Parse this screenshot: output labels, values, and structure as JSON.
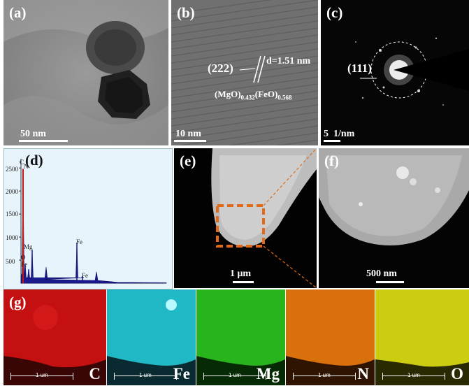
{
  "panels": {
    "a": {
      "label": "(a)",
      "scale": "50 nm"
    },
    "b": {
      "label": "(b)",
      "scale": "10 nm",
      "plane": "(222)",
      "dspacing": "d=1.51 nm",
      "phase_main": "(MgO)",
      "phase_sub1": "0.432",
      "phase_mid": "(FeO)",
      "phase_sub2": "0.568"
    },
    "c": {
      "label": "(c)",
      "scale": "5  1/nm",
      "ring": "(111)"
    },
    "d": {
      "label": "(d)",
      "yticks": [
        "2500",
        "2000",
        "1500",
        "1000",
        "500"
      ],
      "element_labels": {
        "c": "C",
        "n": "N",
        "mg": "Mg",
        "o": "O",
        "fe_low": "Fe",
        "fe1": "Fe",
        "fe2": "Fe"
      }
    },
    "e": {
      "label": "(e)",
      "scale": "1 μm"
    },
    "f": {
      "label": "(f)",
      "scale": "500 nm"
    },
    "g": {
      "label": "(g)",
      "unit": "1 um"
    }
  },
  "maps": [
    {
      "element": "C",
      "color": "#d01010"
    },
    {
      "element": "Fe",
      "color": "#22c8d0"
    },
    {
      "element": "Mg",
      "color": "#2cc020"
    },
    {
      "element": "N",
      "color": "#e07810"
    },
    {
      "element": "O",
      "color": "#d8d810"
    }
  ],
  "chart_data": {
    "type": "line",
    "title": "",
    "xlabel": "",
    "ylabel": "",
    "ylim": [
      0,
      2700
    ],
    "yticks": [
      500,
      1000,
      1500,
      2000,
      2500
    ],
    "peaks": [
      {
        "label": "C N",
        "y": 2480
      },
      {
        "label": "O",
        "y": 420
      },
      {
        "label": "Fe",
        "y": 300
      },
      {
        "label": "Mg",
        "y": 720
      },
      {
        "label": "Fe",
        "y": 880
      },
      {
        "label": "Fe",
        "y": 150
      }
    ]
  }
}
